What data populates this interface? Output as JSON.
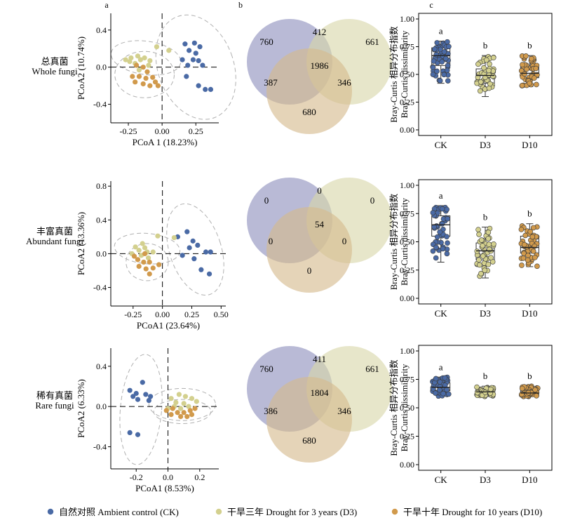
{
  "panel_letters": [
    "a",
    "b",
    "c"
  ],
  "rows": [
    {
      "label_cn": "总真菌",
      "label_en": "Whole fungi"
    },
    {
      "label_cn": "丰富真菌",
      "label_en": "Abundant fungi"
    },
    {
      "label_cn": "稀有真菌",
      "label_en": "Rare fungi"
    }
  ],
  "legend": [
    {
      "label": "自然对照 Ambient control (CK)",
      "color": "#4a6aa5"
    },
    {
      "label": "干旱三年 Drought for 3 years (D3)",
      "color": "#d3d08e"
    },
    {
      "label": "干旱十年 Drought for 10 years (D10)",
      "color": "#d19a4c"
    }
  ],
  "colors": {
    "CK": "#4a6aa5",
    "D3": "#d3d08e",
    "D10": "#d19a4c",
    "venn_CK": "#8e8fbd",
    "venn_D3": "#d8d7a9",
    "venn_D10": "#d5b98c"
  },
  "chart_data": [
    {
      "type": "scatter",
      "panel": "a",
      "row": "Whole fungi",
      "xlabel": "PCoA 1 (18.23%)",
      "ylabel": "PCoA2 (10.74%)",
      "xlim": [
        -0.38,
        0.42
      ],
      "ylim": [
        -0.6,
        0.58
      ],
      "xticks": [
        "-0.25",
        "0.00",
        "0.25"
      ],
      "yticks": [
        "-0.4",
        "0.0",
        "0.4"
      ],
      "tick_values_x": [
        -0.25,
        0,
        0.25
      ],
      "tick_values_y": [
        -0.4,
        0,
        0.4
      ],
      "series": [
        {
          "group": "CK",
          "points": [
            [
              0.17,
              0.25
            ],
            [
              0.24,
              0.26
            ],
            [
              0.28,
              0.22
            ],
            [
              0.2,
              0.18
            ],
            [
              0.25,
              0.15
            ],
            [
              0.15,
              0.08
            ],
            [
              0.23,
              0.08
            ],
            [
              0.27,
              0.07
            ],
            [
              0.19,
              0.02
            ],
            [
              0.3,
              0.02
            ],
            [
              0.18,
              -0.1
            ],
            [
              0.27,
              -0.2
            ],
            [
              0.32,
              -0.24
            ],
            [
              0.36,
              -0.24
            ]
          ]
        },
        {
          "group": "D3",
          "points": [
            [
              -0.04,
              0.22
            ],
            [
              0.05,
              0.18
            ],
            [
              -0.18,
              0.12
            ],
            [
              -0.23,
              0.1
            ],
            [
              -0.16,
              0.08
            ],
            [
              -0.13,
              0.1
            ],
            [
              -0.24,
              0.06
            ],
            [
              -0.2,
              0.04
            ],
            [
              -0.09,
              0.07
            ],
            [
              -0.27,
              0.08
            ],
            [
              -0.17,
              -0.03
            ],
            [
              -0.1,
              0.02
            ]
          ]
        },
        {
          "group": "D10",
          "points": [
            [
              -0.19,
              0.02
            ],
            [
              -0.14,
              0.0
            ],
            [
              -0.22,
              -0.1
            ],
            [
              -0.17,
              -0.1
            ],
            [
              -0.12,
              -0.12
            ],
            [
              -0.07,
              -0.11
            ],
            [
              -0.14,
              -0.18
            ],
            [
              -0.09,
              -0.2
            ],
            [
              -0.2,
              -0.16
            ],
            [
              -0.05,
              -0.16
            ],
            [
              -0.03,
              -0.2
            ],
            [
              -0.11,
              -0.05
            ]
          ]
        }
      ],
      "ellipses": [
        {
          "group": "CK",
          "cx": 0.25,
          "cy": 0.0,
          "rx": 0.28,
          "ry": 0.58,
          "angle": -20
        },
        {
          "group": "D3",
          "cx": -0.12,
          "cy": 0.1,
          "rx": 0.26,
          "ry": 0.18,
          "angle": 8
        },
        {
          "group": "D10",
          "cx": -0.13,
          "cy": -0.08,
          "rx": 0.22,
          "ry": 0.25,
          "angle": 0
        }
      ]
    },
    {
      "type": "venn",
      "panel": "b",
      "row": "Whole fungi",
      "values": {
        "CK_only": 760,
        "D3_only": 661,
        "D10_only": 680,
        "CK_D3": 412,
        "CK_D10": 387,
        "D3_D10": 346,
        "all": 1986
      }
    },
    {
      "type": "box",
      "panel": "c",
      "row": "Whole fungi",
      "ylabel_cn": "Bray-Curtis 相异分布指数",
      "ylabel_en": "Bray-Curtis dissimilarity",
      "categories": [
        "CK",
        "D3",
        "D10"
      ],
      "ylim": [
        0,
        1
      ],
      "yticks": [
        "0.00",
        "0.25",
        "0.50",
        "0.75",
        "1.00"
      ],
      "tick_values_y": [
        0,
        0.25,
        0.5,
        0.75,
        1
      ],
      "boxes": [
        {
          "group": "CK",
          "min": 0.42,
          "q1": 0.58,
          "median": 0.67,
          "q3": 0.74,
          "max": 0.8
        },
        {
          "group": "D3",
          "min": 0.3,
          "q1": 0.42,
          "median": 0.49,
          "q3": 0.55,
          "max": 0.67
        },
        {
          "group": "D10",
          "min": 0.39,
          "q1": 0.47,
          "median": 0.51,
          "q3": 0.57,
          "max": 0.67
        }
      ],
      "letters": [
        "a",
        "b",
        "b"
      ]
    },
    {
      "type": "scatter",
      "panel": "a",
      "row": "Abundant fungi",
      "xlabel": "PCoA1 (23.64%)",
      "ylabel": "PCoA2 (13.36%)",
      "xlim": [
        -0.44,
        0.54
      ],
      "ylim": [
        -0.62,
        0.86
      ],
      "xticks": [
        "-0.25",
        "0.00",
        "0.25",
        "0.50"
      ],
      "yticks": [
        "-0.4",
        "0.0",
        "0.4",
        "0.8"
      ],
      "tick_values_x": [
        -0.25,
        0,
        0.25,
        0.5
      ],
      "tick_values_y": [
        -0.4,
        0,
        0.4,
        0.8
      ],
      "series": [
        {
          "group": "CK",
          "points": [
            [
              0.21,
              0.26
            ],
            [
              0.13,
              0.2
            ],
            [
              0.26,
              0.15
            ],
            [
              0.3,
              0.1
            ],
            [
              0.37,
              0.02
            ],
            [
              0.41,
              0.02
            ],
            [
              0.23,
              0.07
            ],
            [
              0.27,
              -0.06
            ],
            [
              0.33,
              -0.19
            ],
            [
              0.4,
              -0.24
            ],
            [
              0.17,
              -0.02
            ]
          ]
        },
        {
          "group": "D3",
          "points": [
            [
              -0.04,
              0.21
            ],
            [
              0.1,
              0.19
            ],
            [
              -0.17,
              0.12
            ],
            [
              -0.23,
              0.08
            ],
            [
              -0.15,
              0.07
            ],
            [
              -0.2,
              0.04
            ],
            [
              -0.13,
              0.02
            ],
            [
              -0.26,
              0.0
            ],
            [
              -0.18,
              -0.02
            ],
            [
              -0.08,
              0.02
            ],
            [
              -0.12,
              -0.05
            ]
          ]
        },
        {
          "group": "D10",
          "points": [
            [
              -0.15,
              0.0
            ],
            [
              -0.21,
              -0.07
            ],
            [
              -0.16,
              -0.1
            ],
            [
              -0.11,
              -0.1
            ],
            [
              -0.2,
              -0.15
            ],
            [
              -0.14,
              -0.18
            ],
            [
              -0.08,
              -0.17
            ],
            [
              -0.03,
              -0.13
            ],
            [
              -0.24,
              -0.03
            ],
            [
              -0.11,
              -0.24
            ]
          ]
        }
      ],
      "ellipses": [
        {
          "group": "CK",
          "cx": 0.28,
          "cy": 0.05,
          "rx": 0.22,
          "ry": 0.56,
          "angle": -18
        },
        {
          "group": "D3",
          "cx": -0.13,
          "cy": 0.06,
          "rx": 0.28,
          "ry": 0.18,
          "angle": 5
        },
        {
          "group": "D10",
          "cx": -0.13,
          "cy": -0.1,
          "rx": 0.18,
          "ry": 0.22,
          "angle": 0
        }
      ]
    },
    {
      "type": "venn",
      "panel": "b",
      "row": "Abundant fungi",
      "values": {
        "CK_only": 0,
        "D3_only": 0,
        "D10_only": 0,
        "CK_D3": 0,
        "CK_D10": 0,
        "D3_D10": 0,
        "all": 54
      }
    },
    {
      "type": "box",
      "panel": "c",
      "row": "Abundant fungi",
      "ylabel_cn": "Bray-Curtis 相异分布指数",
      "ylabel_en": "Bray-Curtis dissimilarity",
      "categories": [
        "CK",
        "D3",
        "D10"
      ],
      "ylim": [
        0,
        1
      ],
      "yticks": [
        "0.00",
        "0.25",
        "0.50",
        "0.75",
        "1.00"
      ],
      "tick_values_y": [
        0,
        0.25,
        0.5,
        0.75,
        1
      ],
      "boxes": [
        {
          "group": "CK",
          "min": 0.32,
          "q1": 0.55,
          "median": 0.65,
          "q3": 0.73,
          "max": 0.82
        },
        {
          "group": "D3",
          "min": 0.18,
          "q1": 0.34,
          "median": 0.42,
          "q3": 0.49,
          "max": 0.63
        },
        {
          "group": "D10",
          "min": 0.28,
          "q1": 0.4,
          "median": 0.45,
          "q3": 0.55,
          "max": 0.66
        }
      ],
      "letters": [
        "a",
        "b",
        "b"
      ]
    },
    {
      "type": "scatter",
      "panel": "a",
      "row": "Rare fungi",
      "xlabel": "PCoA1 (8.53%)",
      "ylabel": "PCoA2 (6.33%)",
      "xlim": [
        -0.36,
        0.32
      ],
      "ylim": [
        -0.62,
        0.58
      ],
      "xticks": [
        "-0.2",
        "0.0",
        "0.2"
      ],
      "yticks": [
        "-0.4",
        "0.0",
        "0.4"
      ],
      "tick_values_x": [
        -0.2,
        0,
        0.2
      ],
      "tick_values_y": [
        -0.4,
        0,
        0.4
      ],
      "series": [
        {
          "group": "CK",
          "points": [
            [
              -0.16,
              0.24
            ],
            [
              -0.24,
              0.16
            ],
            [
              -0.2,
              0.13
            ],
            [
              -0.14,
              0.12
            ],
            [
              -0.11,
              0.1
            ],
            [
              -0.19,
              0.07
            ],
            [
              -0.12,
              0.06
            ],
            [
              -0.24,
              -0.26
            ],
            [
              -0.19,
              -0.28
            ],
            [
              -0.22,
              0.1
            ]
          ]
        },
        {
          "group": "D3",
          "points": [
            [
              0.02,
              0.08
            ],
            [
              0.07,
              0.12
            ],
            [
              0.11,
              0.1
            ],
            [
              0.15,
              0.08
            ],
            [
              0.05,
              0.04
            ],
            [
              0.1,
              0.03
            ],
            [
              0.18,
              0.05
            ],
            [
              0.0,
              -0.02
            ],
            [
              0.08,
              -0.02
            ],
            [
              0.13,
              0.0
            ],
            [
              0.04,
              0.0
            ]
          ]
        },
        {
          "group": "D10",
          "points": [
            [
              0.03,
              -0.02
            ],
            [
              0.06,
              -0.06
            ],
            [
              0.1,
              -0.06
            ],
            [
              0.14,
              -0.04
            ],
            [
              0.17,
              -0.02
            ],
            [
              0.08,
              -0.1
            ],
            [
              0.02,
              -0.08
            ],
            [
              0.12,
              -0.1
            ],
            [
              0.15,
              -0.08
            ],
            [
              -0.01,
              -0.04
            ]
          ]
        }
      ],
      "ellipses": [
        {
          "group": "CK",
          "cx": -0.17,
          "cy": -0.03,
          "rx": 0.13,
          "ry": 0.55,
          "angle": 5
        },
        {
          "group": "D3",
          "cx": 0.09,
          "cy": 0.02,
          "rx": 0.21,
          "ry": 0.16,
          "angle": 0
        },
        {
          "group": "D10",
          "cx": 0.09,
          "cy": -0.05,
          "rx": 0.18,
          "ry": 0.12,
          "angle": 0
        }
      ]
    },
    {
      "type": "venn",
      "panel": "b",
      "row": "Rare fungi",
      "values": {
        "CK_only": 760,
        "D3_only": 661,
        "D10_only": 680,
        "CK_D3": 411,
        "CK_D10": 386,
        "D3_D10": 346,
        "all": 1804
      }
    },
    {
      "type": "box",
      "panel": "c",
      "row": "Rare fungi",
      "ylabel_cn": "Bray-Curtis 相异分布指数",
      "ylabel_en": "Bray-Curtis dissimilarity",
      "categories": [
        "CK",
        "D3",
        "D10"
      ],
      "ylim": [
        0,
        1
      ],
      "yticks": [
        "0.00",
        "0.25",
        "0.50",
        "0.75",
        "1.00"
      ],
      "tick_values_y": [
        0,
        0.25,
        0.5,
        0.75,
        1
      ],
      "boxes": [
        {
          "group": "CK",
          "min": 0.6,
          "q1": 0.65,
          "median": 0.68,
          "q3": 0.72,
          "max": 0.77
        },
        {
          "group": "D3",
          "min": 0.6,
          "q1": 0.62,
          "median": 0.64,
          "q3": 0.66,
          "max": 0.69
        },
        {
          "group": "D10",
          "min": 0.6,
          "q1": 0.62,
          "median": 0.63,
          "q3": 0.65,
          "max": 0.69
        }
      ],
      "letters": [
        "a",
        "b",
        "b"
      ]
    }
  ]
}
